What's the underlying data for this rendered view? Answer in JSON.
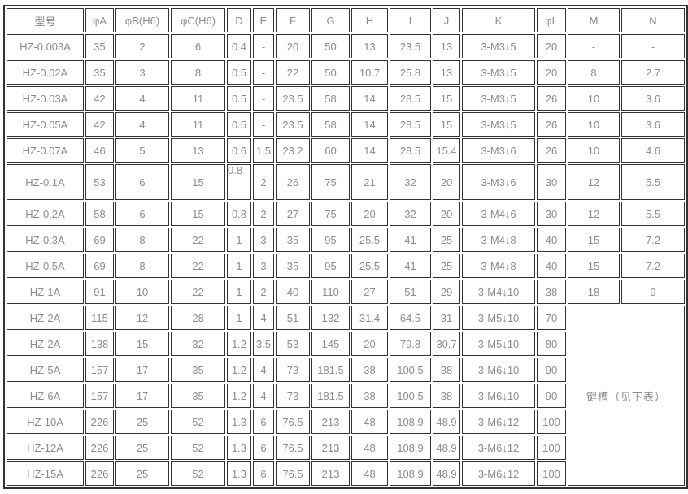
{
  "colors": {
    "border": "#333333",
    "text": "#8c8c8c",
    "cell_bg": "#ffffff",
    "page_bg": "#ffffff"
  },
  "table": {
    "columns": [
      "型号",
      "φA",
      "φB(H6)",
      "φC(H6)",
      "D",
      "E",
      "F",
      "G",
      "H",
      "I",
      "J",
      "K",
      "φL",
      "M",
      "N"
    ],
    "rows": [
      [
        "HZ-0.003A",
        "35",
        "2",
        "6",
        "0.4",
        "-",
        "20",
        "50",
        "13",
        "23.5",
        "13",
        "3-M3↓5",
        "20",
        "-",
        "-"
      ],
      [
        "HZ-0.02A",
        "35",
        "3",
        "8",
        "0.5",
        "-",
        "22",
        "50",
        "10.7",
        "25.8",
        "13",
        "3-M3↓5",
        "20",
        "8",
        "2.7"
      ],
      [
        "HZ-0.03A",
        "42",
        "4",
        "11",
        "0.5",
        "-",
        "23.5",
        "58",
        "14",
        "28.5",
        "15",
        "3-M3↓5",
        "26",
        "10",
        "3.6"
      ],
      [
        "HZ-0.05A",
        "42",
        "4",
        "11",
        "0.5",
        "-",
        "23.5",
        "58",
        "14",
        "28.5",
        "15",
        "3-M3↓5",
        "26",
        "10",
        "3.6"
      ],
      [
        "HZ-0.07A",
        "46",
        "5",
        "13",
        "0.6",
        "1.5",
        "23.2",
        "60",
        "14",
        "28.5",
        "15.4",
        "3-M3↓6",
        "26",
        "10",
        "4.6"
      ],
      [
        "HZ-0.1A",
        "53",
        "6",
        "15",
        "0.8",
        "2",
        "26",
        "75",
        "21",
        "32",
        "20",
        "3-M3↓6",
        "30",
        "12",
        "5.5"
      ],
      [
        "HZ-0.2A",
        "58",
        "6",
        "15",
        "0.8",
        "2",
        "27",
        "75",
        "20",
        "32",
        "20",
        "3-M4↓6",
        "30",
        "12",
        "5.5"
      ],
      [
        "HZ-0.3A",
        "69",
        "8",
        "22",
        "1",
        "3",
        "35",
        "95",
        "25.5",
        "41",
        "25",
        "3-M4↓8",
        "40",
        "15",
        "7.2"
      ],
      [
        "HZ-0.5A",
        "69",
        "8",
        "22",
        "1",
        "3",
        "35",
        "95",
        "25.5",
        "41",
        "25",
        "3-M4↓8",
        "40",
        "15",
        "7.2"
      ],
      [
        "HZ-1A",
        "91",
        "10",
        "22",
        "1",
        "2",
        "40",
        "110",
        "27",
        "51",
        "29",
        "3-M4↓10",
        "38",
        "18",
        "9"
      ],
      [
        "HZ-2A",
        "115",
        "12",
        "28",
        "1",
        "4",
        "51",
        "132",
        "31.4",
        "64.5",
        "31",
        "3-M5↓10",
        "70"
      ],
      [
        "HZ-2A",
        "138",
        "15",
        "32",
        "1.2",
        "3.5",
        "53",
        "145",
        "20",
        "79.8",
        "30.7",
        "3-M5↓10",
        "80"
      ],
      [
        "HZ-5A",
        "157",
        "17",
        "35",
        "1.2",
        "4",
        "73",
        "181.5",
        "38",
        "100.5",
        "38",
        "3-M6↓10",
        "90"
      ],
      [
        "HZ-6A",
        "157",
        "17",
        "35",
        "1.2",
        "4",
        "73",
        "181.5",
        "38",
        "100.5",
        "38",
        "3-M6↓10",
        "90"
      ],
      [
        "HZ-10A",
        "226",
        "25",
        "52",
        "1.3",
        "6",
        "76.5",
        "213",
        "48",
        "108.9",
        "48.9",
        "3-M6↓12",
        "100"
      ],
      [
        "HZ-12A",
        "226",
        "25",
        "52",
        "1.3",
        "6",
        "76.5",
        "213",
        "48",
        "108.9",
        "48.9",
        "3-M6↓12",
        "100"
      ],
      [
        "HZ-15A",
        "226",
        "25",
        "52",
        "1.3",
        "6",
        "76.5",
        "213",
        "48",
        "108.9",
        "48.9",
        "3-M6↓12",
        "100"
      ]
    ],
    "merged_note": {
      "text": "键槽（见下表）",
      "start_row_index": 10,
      "row_span": 7,
      "col_span": 2
    }
  }
}
